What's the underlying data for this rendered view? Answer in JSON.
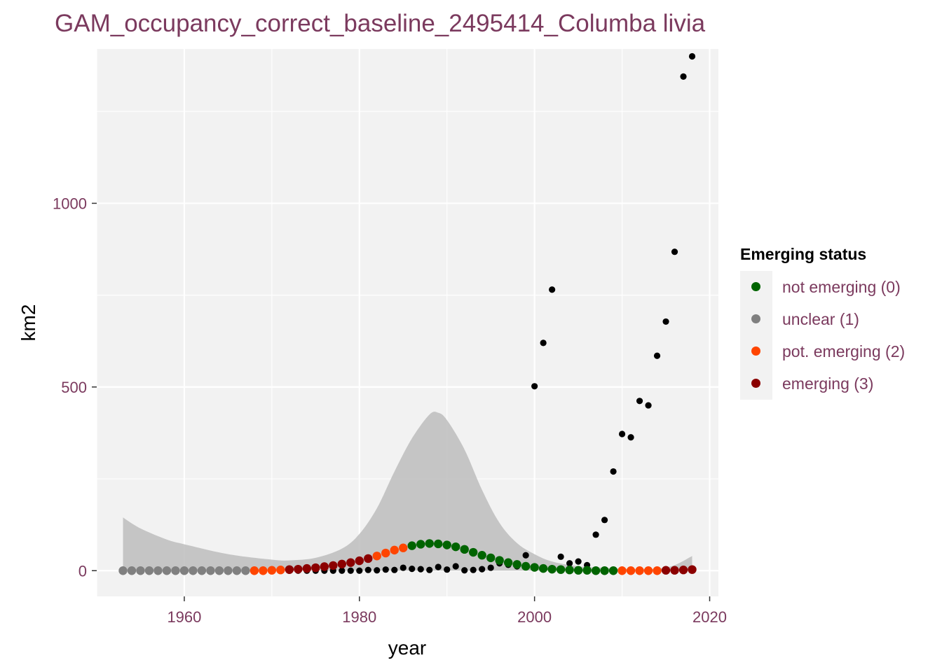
{
  "title": "GAM_occupancy_correct_baseline_2495414_Columba livia",
  "chart_data": {
    "type": "scatter",
    "title": "GAM_occupancy_correct_baseline_2495414_Columba livia",
    "xlabel": "year",
    "ylabel": "km2",
    "xlim": [
      1950,
      2021
    ],
    "ylim": [
      -70,
      1420
    ],
    "x_ticks": [
      1960,
      1980,
      2000,
      2020
    ],
    "y_ticks": [
      0,
      500,
      1000
    ],
    "grid": true,
    "legend": {
      "title": "Emerging status",
      "position": "right",
      "entries": [
        {
          "label": "not emerging (0)",
          "color": "#006400"
        },
        {
          "label": "unclear (1)",
          "color": "#808080"
        },
        {
          "label": "pot. emerging (2)",
          "color": "#ff4500"
        },
        {
          "label": "emerging (3)",
          "color": "#8b0000"
        }
      ]
    },
    "observed": {
      "color": "#000000",
      "points": [
        [
          1972,
          0
        ],
        [
          1973,
          0
        ],
        [
          1974,
          0
        ],
        [
          1975,
          0
        ],
        [
          1976,
          0
        ],
        [
          1977,
          0
        ],
        [
          1978,
          0
        ],
        [
          1979,
          0
        ],
        [
          1980,
          0
        ],
        [
          1981,
          2
        ],
        [
          1982,
          1
        ],
        [
          1983,
          3
        ],
        [
          1984,
          2
        ],
        [
          1985,
          8
        ],
        [
          1986,
          5
        ],
        [
          1987,
          4
        ],
        [
          1988,
          2
        ],
        [
          1989,
          10
        ],
        [
          1990,
          3
        ],
        [
          1991,
          12
        ],
        [
          1992,
          1
        ],
        [
          1993,
          2
        ],
        [
          1994,
          4
        ],
        [
          1995,
          8
        ],
        [
          1996,
          20
        ],
        [
          1997,
          16
        ],
        [
          1998,
          12
        ],
        [
          1999,
          42
        ],
        [
          2000,
          502
        ],
        [
          2001,
          620
        ],
        [
          2002,
          765
        ],
        [
          2003,
          38
        ],
        [
          2004,
          20
        ],
        [
          2005,
          25
        ],
        [
          2006,
          15
        ],
        [
          2007,
          98
        ],
        [
          2008,
          138
        ],
        [
          2009,
          270
        ],
        [
          2010,
          372
        ],
        [
          2011,
          363
        ],
        [
          2012,
          462
        ],
        [
          2013,
          450
        ],
        [
          2014,
          585
        ],
        [
          2015,
          678
        ],
        [
          2016,
          868
        ],
        [
          2017,
          1345
        ],
        [
          2018,
          1400
        ]
      ]
    },
    "ribbon": {
      "color": "#bdbdbd",
      "x": [
        1953,
        1955,
        1958,
        1960,
        1965,
        1970,
        1972,
        1975,
        1978,
        1980,
        1982,
        1984,
        1986,
        1988,
        1989,
        1990,
        1992,
        1994,
        1996,
        1998,
        2000,
        2002,
        2005,
        2008,
        2010,
        2012,
        2014,
        2016,
        2018
      ],
      "upper": [
        145,
        115,
        85,
        72,
        45,
        30,
        28,
        35,
        60,
        100,
        170,
        270,
        360,
        425,
        430,
        410,
        330,
        220,
        130,
        75,
        45,
        25,
        12,
        8,
        5,
        4,
        5,
        15,
        40
      ],
      "lower": [
        0,
        0,
        0,
        0,
        0,
        0,
        0,
        0,
        0,
        0,
        0,
        0,
        0,
        0,
        0,
        0,
        0,
        0,
        0,
        0,
        0,
        0,
        0,
        0,
        0,
        0,
        0,
        0,
        0
      ]
    },
    "fitted": {
      "points": [
        [
          1953,
          0,
          1
        ],
        [
          1954,
          0,
          1
        ],
        [
          1955,
          0,
          1
        ],
        [
          1956,
          0,
          1
        ],
        [
          1957,
          0,
          1
        ],
        [
          1958,
          0,
          1
        ],
        [
          1959,
          0,
          1
        ],
        [
          1960,
          0,
          1
        ],
        [
          1961,
          0,
          1
        ],
        [
          1962,
          0,
          1
        ],
        [
          1963,
          0,
          1
        ],
        [
          1964,
          0,
          1
        ],
        [
          1965,
          0,
          1
        ],
        [
          1966,
          0,
          1
        ],
        [
          1967,
          0,
          1
        ],
        [
          1968,
          0,
          2
        ],
        [
          1969,
          0,
          2
        ],
        [
          1970,
          1,
          2
        ],
        [
          1971,
          2,
          2
        ],
        [
          1972,
          3,
          3
        ],
        [
          1973,
          4,
          3
        ],
        [
          1974,
          6,
          3
        ],
        [
          1975,
          8,
          3
        ],
        [
          1976,
          11,
          3
        ],
        [
          1977,
          14,
          3
        ],
        [
          1978,
          18,
          3
        ],
        [
          1979,
          22,
          3
        ],
        [
          1980,
          27,
          3
        ],
        [
          1981,
          33,
          3
        ],
        [
          1982,
          40,
          2
        ],
        [
          1983,
          48,
          2
        ],
        [
          1984,
          56,
          2
        ],
        [
          1985,
          62,
          2
        ],
        [
          1986,
          68,
          0
        ],
        [
          1987,
          72,
          0
        ],
        [
          1988,
          74,
          0
        ],
        [
          1989,
          73,
          0
        ],
        [
          1990,
          70,
          0
        ],
        [
          1991,
          65,
          0
        ],
        [
          1992,
          58,
          0
        ],
        [
          1993,
          50,
          0
        ],
        [
          1994,
          42,
          0
        ],
        [
          1995,
          35,
          0
        ],
        [
          1996,
          28,
          0
        ],
        [
          1997,
          22,
          0
        ],
        [
          1998,
          17,
          0
        ],
        [
          1999,
          12,
          0
        ],
        [
          2000,
          9,
          0
        ],
        [
          2001,
          6,
          0
        ],
        [
          2002,
          4,
          0
        ],
        [
          2003,
          3,
          0
        ],
        [
          2004,
          2,
          0
        ],
        [
          2005,
          1,
          0
        ],
        [
          2006,
          1,
          0
        ],
        [
          2007,
          0,
          0
        ],
        [
          2008,
          0,
          0
        ],
        [
          2009,
          0,
          0
        ],
        [
          2010,
          0,
          2
        ],
        [
          2011,
          0,
          2
        ],
        [
          2012,
          0,
          2
        ],
        [
          2013,
          0,
          2
        ],
        [
          2014,
          0,
          2
        ],
        [
          2015,
          1,
          3
        ],
        [
          2016,
          1,
          3
        ],
        [
          2017,
          2,
          3
        ],
        [
          2018,
          3,
          3
        ]
      ]
    }
  }
}
